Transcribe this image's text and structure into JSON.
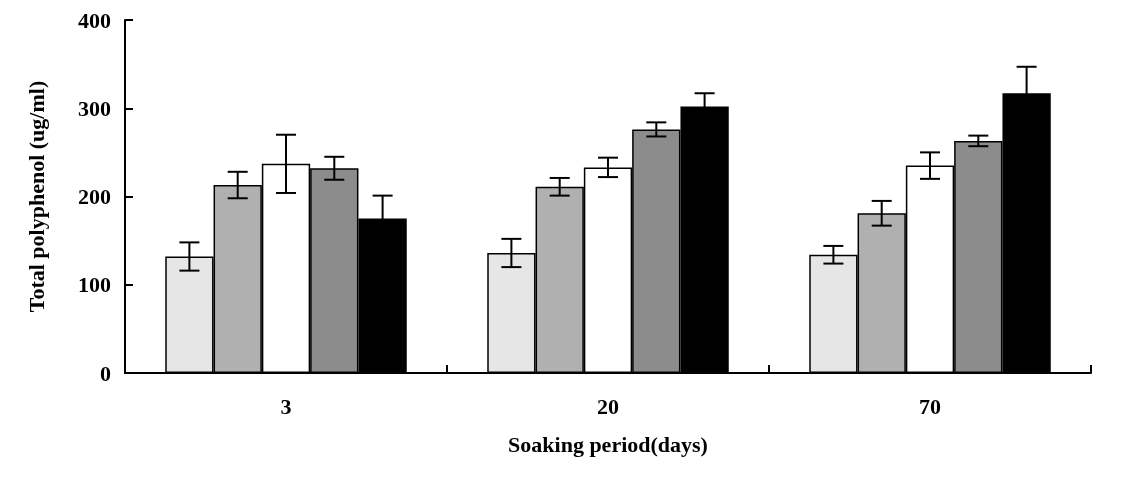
{
  "chart_data": {
    "type": "bar",
    "xlabel": "Soaking period(days)",
    "ylabel": "Total polyphenol (ug/ml)",
    "categories": [
      "3",
      "20",
      "70"
    ],
    "series": [
      {
        "color": "#e6e6e6",
        "values": [
          132,
          136,
          134
        ],
        "errors": [
          16,
          16,
          10
        ]
      },
      {
        "color": "#b0b0b0",
        "values": [
          213,
          211,
          181
        ],
        "errors": [
          15,
          10,
          14
        ]
      },
      {
        "color": "#ffffff",
        "values": [
          237,
          233,
          235
        ],
        "errors": [
          33,
          11,
          15
        ]
      },
      {
        "color": "#8c8c8c",
        "values": [
          232,
          276,
          263
        ],
        "errors": [
          13,
          8,
          6
        ]
      },
      {
        "color": "#000000",
        "values": [
          175,
          302,
          317
        ],
        "errors": [
          26,
          15,
          30
        ]
      }
    ],
    "ylim": [
      0,
      400
    ],
    "yticks": [
      0,
      100,
      200,
      300,
      400
    ],
    "grid": false
  }
}
